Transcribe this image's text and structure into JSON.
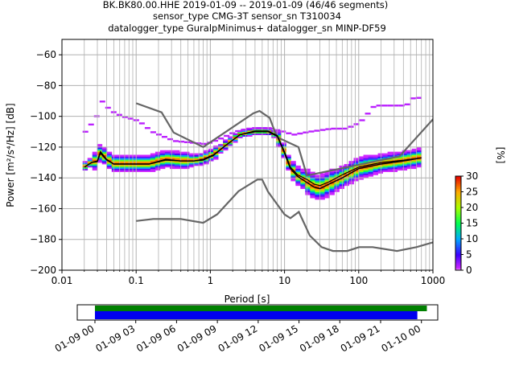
{
  "header": {
    "line1": "BK.BK80.00.HHE   2019-01-09 -- 2019-01-09  (46/46 segments)",
    "line2": "sensor_type CMG-3T sensor_sn T310034",
    "line3": "datalogger_type GuralpMinimus+ datalogger_sn MINP-DF59"
  },
  "colors": {
    "nlnm_nhnm": "#666666",
    "mode": "#000000",
    "mean": "#000000",
    "grid": "#b0b0b0",
    "timeline_data": "#0000ee",
    "timeline_gaps": "#008000"
  },
  "chart_data": [
    {
      "type": "heatmap",
      "title": "",
      "xlabel": "Period [s]",
      "ylabel": "Power [m²/s⁴/Hz] [dB]",
      "x_scale": "log",
      "xlim": [
        0.01,
        1000
      ],
      "ylim": [
        -200,
        -50
      ],
      "x_ticks": [
        0.01,
        0.1,
        1,
        10,
        100,
        1000
      ],
      "x_tick_labels": [
        "0.01",
        "0.1",
        "1",
        "10",
        "100",
        "1000"
      ],
      "y_ticks": [
        -200,
        -180,
        -160,
        -140,
        -120,
        -100,
        -80,
        -60
      ],
      "y_tick_labels": [
        "−200",
        "−180",
        "−160",
        "−140",
        "−120",
        "−100",
        "−80",
        "−60"
      ],
      "grid": true,
      "colorbar": {
        "label": "[%]",
        "range": [
          0,
          30
        ],
        "ticks": [
          0,
          5,
          10,
          15,
          20,
          25,
          30
        ]
      },
      "series": [
        {
          "role": "noise_model_high",
          "x": [
            0.1,
            0.22,
            0.32,
            0.8,
            3.8,
            4.6,
            6.3,
            7.9,
            15.4,
            20,
            354.8,
            10000
          ],
          "values": [
            -91.5,
            -97.4,
            -110.5,
            -120,
            -98,
            -96.5,
            -101,
            -113.5,
            -120,
            -138.5,
            -126,
            -48.5
          ]
        },
        {
          "role": "noise_model_low",
          "x": [
            0.1,
            0.17,
            0.4,
            0.8,
            1.24,
            2.4,
            4.3,
            5,
            6,
            10,
            12,
            15.6,
            21.9,
            31.6,
            45,
            70,
            101,
            154,
            328,
            600,
            10000
          ],
          "values": [
            -168,
            -166.7,
            -166.7,
            -169.2,
            -163.7,
            -148.6,
            -141.1,
            -141.1,
            -149,
            -163.8,
            -166.2,
            -162.1,
            -177.5,
            -185,
            -187.5,
            -187.5,
            -185,
            -185,
            -187.5,
            -185,
            -168
          ]
        },
        {
          "role": "mode",
          "x": [
            0.02,
            0.025,
            0.03,
            0.033,
            0.04,
            0.05,
            0.08,
            0.15,
            0.25,
            0.4,
            0.6,
            0.8,
            1.1,
            1.6,
            2.5,
            4,
            6,
            8,
            10,
            12,
            15,
            20,
            25,
            30,
            40,
            60,
            100,
            200,
            400,
            700
          ],
          "values": [
            -133,
            -130,
            -129,
            -123,
            -128,
            -131,
            -131,
            -131,
            -128,
            -129,
            -129,
            -128,
            -125,
            -119,
            -112,
            -110,
            -110,
            -113,
            -124,
            -134,
            -139,
            -143,
            -146,
            -147,
            -144,
            -140,
            -134,
            -131,
            -129,
            -127
          ]
        },
        {
          "role": "mean",
          "x": [
            0.02,
            0.025,
            0.03,
            0.033,
            0.04,
            0.05,
            0.08,
            0.15,
            0.25,
            0.4,
            0.6,
            0.8,
            1.1,
            1.6,
            2.5,
            4,
            6,
            8,
            10,
            12,
            15,
            20,
            25,
            30,
            40,
            60,
            100,
            200,
            400,
            700
          ],
          "values": [
            -133,
            -130,
            -129.5,
            -124,
            -128.5,
            -131,
            -131,
            -131,
            -128.5,
            -129,
            -129,
            -128.5,
            -125.5,
            -119,
            -112,
            -109.5,
            -109.5,
            -112.5,
            -123,
            -133,
            -138,
            -141,
            -144,
            -145,
            -142.5,
            -138,
            -133,
            -130,
            -128.5,
            -127
          ]
        },
        {
          "role": "envelope_upper",
          "x": [
            0.019,
            0.022,
            0.026,
            0.03,
            0.033,
            0.04,
            0.06,
            0.1,
            0.15,
            0.3,
            0.8,
            1.2,
            2,
            3,
            6,
            9,
            12,
            20,
            40,
            60,
            80,
            100,
            150,
            400,
            500,
            700
          ],
          "values": [
            -110,
            -106,
            -102,
            -94,
            -89,
            -96,
            -100,
            -103,
            -110,
            -116,
            -118,
            -115,
            -110,
            -108,
            -108,
            -110,
            -112,
            -110,
            -108,
            -108,
            -106,
            -103,
            -93,
            -93,
            -88,
            -88
          ]
        }
      ]
    },
    {
      "type": "timeline",
      "x_ticks": [
        "01-09 00",
        "01-09 03",
        "01-09 06",
        "01-09 09",
        "01-09 12",
        "01-09 15",
        "01-09 18",
        "01-09 21",
        "01-10 00"
      ],
      "x_range_hours": [
        -1.3,
        25.2
      ],
      "data_bars": [
        {
          "start_hour": 0,
          "end_hour": 23.7,
          "color": "#0000ee"
        },
        {
          "start_hour": 0,
          "end_hour": 24.4,
          "color": "#008000"
        }
      ]
    }
  ]
}
